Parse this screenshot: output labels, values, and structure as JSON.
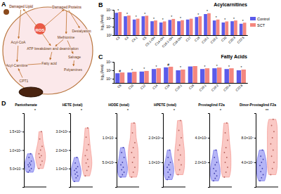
{
  "diagram": {
    "panel": "A",
    "nodes": [
      {
        "label": "Damaged Lipid"
      },
      {
        "label": "Damaged Proteins"
      },
      {
        "label": "ROS"
      },
      {
        "label": "Desialyation"
      },
      {
        "label": "Methionine"
      },
      {
        "label": "Acyl-CoA"
      },
      {
        "label": "ATP breakdown and deamination"
      },
      {
        "label": "Salvage"
      },
      {
        "label": "Fatty acid"
      },
      {
        "label": "Acyl-Carnitine"
      },
      {
        "label": "Polyamines"
      },
      {
        "label": "CPT1"
      }
    ]
  },
  "chart_data": [
    {
      "panel": "B",
      "type": "bar",
      "title": "Acylcarnitines",
      "y_label": "log₁₀(Area)",
      "log": "y",
      "legend": "right",
      "categories": [
        "C3",
        "C4",
        "C4:1",
        "C5",
        "C5:1-OH",
        "C14-OH",
        "C16:1-OH",
        "C16-OH",
        "C17",
        "C18",
        "C18:1",
        "C18:2",
        "C20",
        "C20:3",
        "C22:5"
      ],
      "series": [
        {
          "name": "Control",
          "color": "#5b5bea",
          "values": [
            20000000,
            3000000,
            500000,
            3000000,
            200000,
            100000,
            400000,
            200000,
            500000,
            2000000,
            10000000,
            300000,
            100000,
            200000,
            50000
          ]
        },
        {
          "name": "SCT",
          "color": "#f4877f",
          "values": [
            30000000,
            4500000,
            800000,
            4000000,
            300000,
            180000,
            700000,
            350000,
            800000,
            3000000,
            16000000,
            500000,
            180000,
            300000,
            90000
          ]
        }
      ],
      "annotations": [
        "*",
        "*",
        "*",
        "*",
        "*",
        "*",
        "*",
        "*",
        null,
        "*",
        "*",
        "*",
        "*",
        "*",
        "*"
      ],
      "ylim": [
        100,
        100000000
      ],
      "yticks": [
        {
          "value": 100,
          "label": "10²"
        },
        {
          "value": 10000,
          "label": "10⁴"
        },
        {
          "value": 1000000,
          "label": "10⁶"
        },
        {
          "value": 100000000,
          "label": "10⁸"
        }
      ]
    },
    {
      "panel": "C",
      "type": "bar",
      "title": "Fatty Acids",
      "y_label": "log₁₀(Area)",
      "log": "y",
      "categories": [
        "C8",
        "C10",
        "C12",
        "C14",
        "C16",
        "C16:1",
        "C18",
        "C18:1",
        "C18:2",
        "C20:4",
        "C22:6"
      ],
      "series": [
        {
          "name": "Control",
          "color": "#5b5bea",
          "values": [
            200000,
            300000,
            500000,
            2000000,
            5000000,
            1000000,
            8000000,
            2000000,
            3000000,
            2000000,
            1000000
          ]
        },
        {
          "name": "SCT",
          "color": "#f4877f",
          "values": [
            300000,
            450000,
            700000,
            3000000,
            7000000,
            1500000,
            10000000,
            3000000,
            4500000,
            3000000,
            1500000
          ]
        }
      ],
      "annotations": [
        "#",
        "*",
        "*",
        "*",
        "#",
        "*",
        null,
        "*",
        "*",
        "*",
        "*"
      ],
      "ylim": [
        1000,
        100000000
      ],
      "yticks": [
        {
          "value": 10000,
          "label": "10⁴"
        },
        {
          "value": 1000000,
          "label": "10⁶"
        },
        {
          "value": 100000000,
          "label": "10⁸"
        }
      ]
    },
    {
      "panel": "D",
      "type": "violin",
      "title": "Pantothenate",
      "annotation": "*",
      "series": [
        {
          "color": "#5b5bea",
          "values": [
            40000000,
            45000000,
            50000000,
            55000000,
            60000000,
            60000000,
            65000000,
            70000000,
            80000000,
            90000000
          ]
        },
        {
          "color": "#f4877f",
          "values": [
            50000000,
            60000000,
            70000000,
            80000000,
            85000000,
            90000000,
            100000000,
            110000000,
            130000000,
            150000000
          ]
        }
      ],
      "ylim": [
        0,
        200000000
      ],
      "yticks": [
        {
          "value": 50000000,
          "label": "5.0×10⁷"
        },
        {
          "value": 100000000,
          "label": "1.0×10⁸"
        },
        {
          "value": 150000000,
          "label": "1.5×10⁸"
        }
      ]
    },
    {
      "type": "violin",
      "title": "HETE (total)",
      "annotation": "*",
      "series": [
        {
          "color": "#5b5bea",
          "values": [
            300000,
            500000,
            600000,
            700000,
            800000,
            900000,
            1000000,
            1100000,
            1300000,
            1600000
          ]
        },
        {
          "color": "#f4877f",
          "values": [
            600000,
            900000,
            1100000,
            1300000,
            1500000,
            1700000,
            2000000,
            2300000,
            2700000,
            3200000
          ]
        }
      ],
      "ylim": [
        0,
        4000000
      ],
      "yticks": [
        {
          "value": 1000000,
          "label": "1.0×10⁶"
        },
        {
          "value": 2000000,
          "label": "2.0×10⁶"
        },
        {
          "value": 3000000,
          "label": "3.0×10⁶"
        }
      ]
    },
    {
      "type": "violin",
      "title": "HODE (total)",
      "annotation": "*",
      "series": [
        {
          "color": "#5b5bea",
          "values": [
            2000000,
            2500000,
            3000000,
            3500000,
            4000000,
            4500000,
            5000000,
            6000000,
            7000000,
            8000000
          ]
        },
        {
          "color": "#f4877f",
          "values": [
            2000000,
            3000000,
            4000000,
            5000000,
            6000000,
            7000000,
            8000000,
            9000000,
            11000000,
            13000000
          ]
        }
      ],
      "ylim": [
        0,
        15000000
      ],
      "yticks": [
        {
          "value": 5000000,
          "label": "5.0×10⁶"
        },
        {
          "value": 10000000,
          "label": "1.0×10⁷"
        }
      ]
    },
    {
      "type": "violin",
      "title": "HPETE (total)",
      "annotation": "*",
      "series": [
        {
          "color": "#5b5bea",
          "values": [
            300000,
            400000,
            500000,
            600000,
            700000,
            800000,
            900000,
            1000000,
            1200000,
            1500000
          ]
        },
        {
          "color": "#f4877f",
          "values": [
            500000,
            700000,
            900000,
            1100000,
            1300000,
            1500000,
            1700000,
            2000000,
            2300000,
            2700000
          ]
        }
      ],
      "ylim": [
        0,
        3000000
      ],
      "yticks": [
        {
          "value": 1000000,
          "label": "1.0×10⁶"
        },
        {
          "value": 2000000,
          "label": "2.0×10⁶"
        }
      ]
    },
    {
      "type": "violin",
      "title": "Prostaglind F2a",
      "annotation": "*",
      "series": [
        {
          "color": "#5b5bea",
          "values": [
            50000,
            70000,
            90000,
            110000,
            130000,
            150000,
            180000,
            200000,
            240000,
            300000
          ]
        },
        {
          "color": "#f4877f",
          "values": [
            80000,
            120000,
            160000,
            200000,
            240000,
            280000,
            320000,
            380000,
            440000,
            520000
          ]
        }
      ],
      "ylim": [
        0,
        600000
      ],
      "yticks": [
        {
          "value": 200000,
          "label": "2.0×10⁵"
        },
        {
          "value": 400000,
          "label": "4.0×10⁵"
        }
      ]
    },
    {
      "type": "violin",
      "title": "Dinor-Prostaglind F2a",
      "annotation": "**",
      "series": [
        {
          "color": "#5b5bea",
          "values": [
            10000,
            15000,
            20000,
            25000,
            30000,
            35000,
            40000,
            45000,
            50000,
            60000
          ]
        },
        {
          "color": "#f4877f",
          "values": [
            20000,
            30000,
            40000,
            50000,
            60000,
            70000,
            80000,
            90000,
            100000,
            110000
          ]
        }
      ],
      "ylim": [
        0,
        120000
      ],
      "yticks": [
        {
          "value": 40000,
          "label": "4.0×10⁴"
        },
        {
          "value": 80000,
          "label": "8.0×10⁴"
        }
      ]
    }
  ]
}
